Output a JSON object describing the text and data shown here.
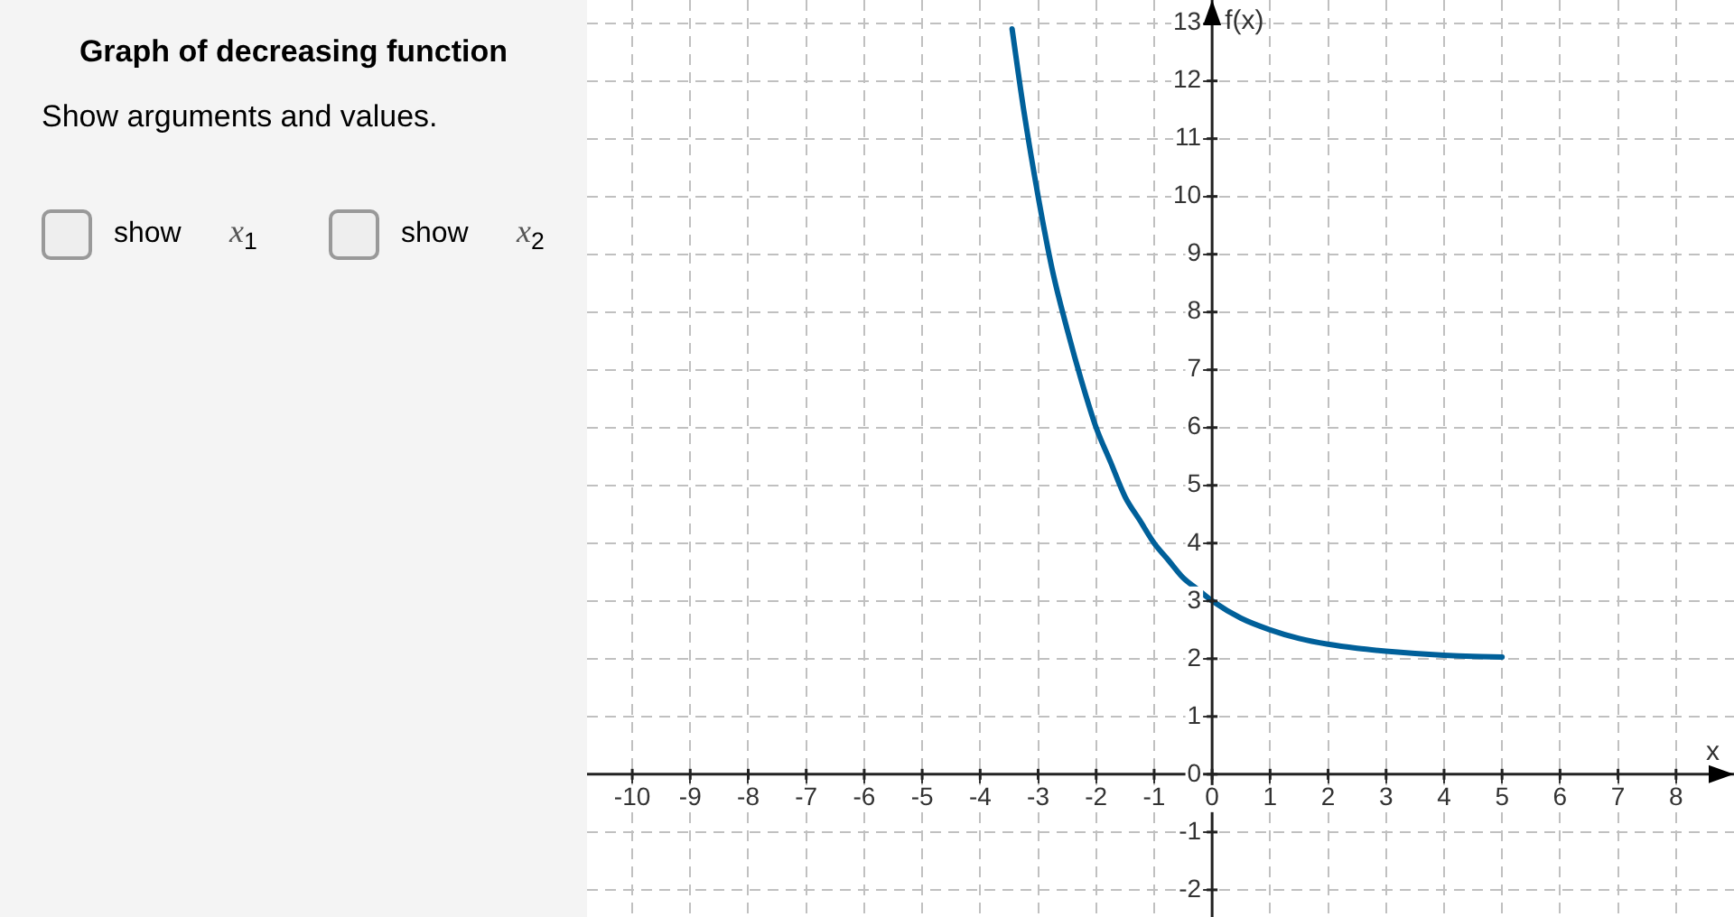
{
  "chart_data": {
    "type": "line",
    "title": "Graph of decreasing function",
    "subtitle": "Show arguments and values.",
    "annotations": [
      "show x$_{1}$",
      "show x$_{2}$"
    ],
    "xlabel": "x",
    "ylabel": "f(x)",
    "series": [
      {
        "color": "#00609a",
        "x": [
          -3.45,
          -3.25,
          -3,
          -2.75,
          -2.5,
          -2.25,
          -2,
          -1.75,
          -1.5,
          -1.25,
          -1,
          -0.75,
          -0.5,
          -0.25,
          0,
          0.5,
          1,
          1.5,
          2,
          2.5,
          3,
          3.5,
          4,
          4.5,
          5
        ],
        "values": [
          12.9,
          11.5,
          10,
          8.7,
          7.7,
          6.8,
          6,
          5.4,
          4.8,
          4.4,
          4,
          3.7,
          3.4,
          3.2,
          3,
          2.7,
          2.5,
          2.35,
          2.25,
          2.18,
          2.13,
          2.09,
          2.06,
          2.04,
          2.03
        ]
      }
    ],
    "xlim": [
      -10.78,
      9
    ],
    "xticks": [
      -10,
      -9,
      -8,
      -7,
      -6,
      -5,
      -4,
      -3,
      -2,
      -1,
      0,
      1,
      2,
      3,
      4,
      5,
      6,
      7,
      8
    ],
    "ylim": [
      -2.47,
      13.4
    ],
    "yticks": [
      -2,
      -1,
      0,
      1,
      2,
      3,
      4,
      5,
      6,
      7,
      8,
      9,
      10,
      11,
      12,
      13
    ],
    "grid": true,
    "marker": "none",
    "line_style": "solid",
    "legend": false
  }
}
